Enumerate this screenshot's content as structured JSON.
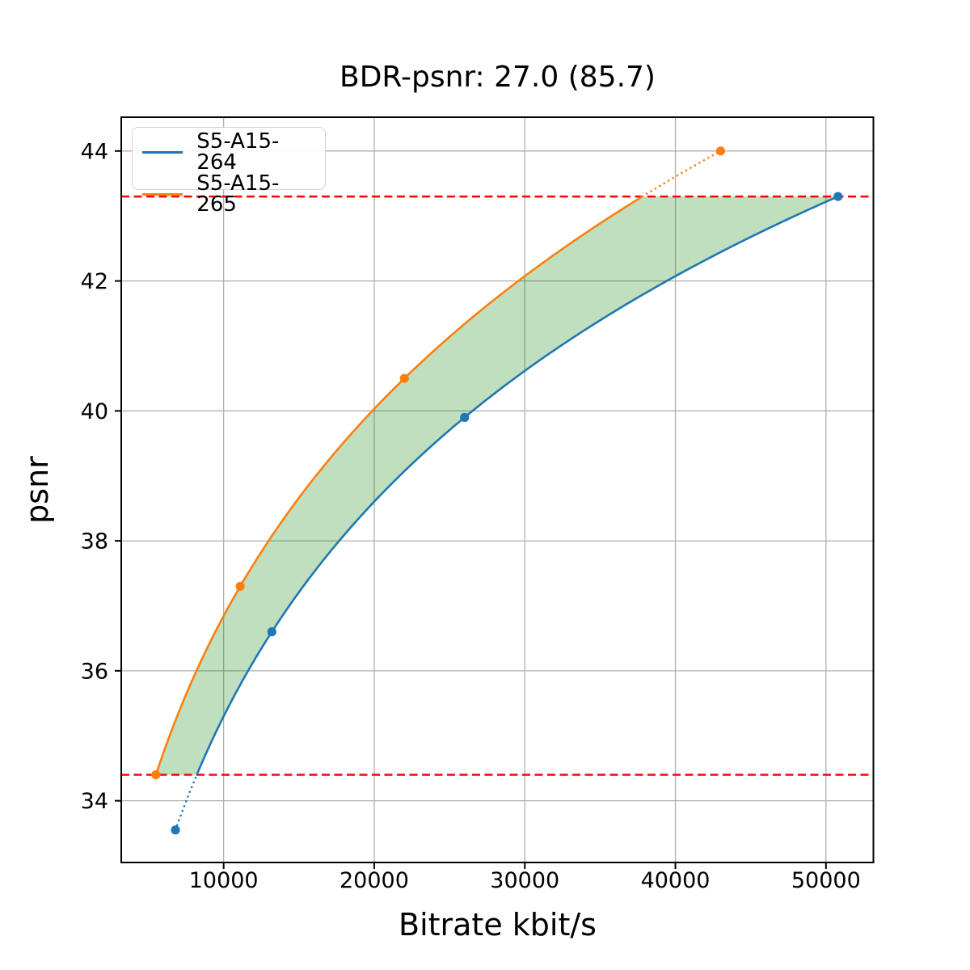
{
  "chart_data": {
    "type": "line",
    "title": "BDR-psnr: 27.0 (85.7)",
    "xlabel": "Bitrate kbit/s",
    "ylabel": "psnr",
    "xlim": [
      3200,
      53150
    ],
    "ylim": [
      33.05,
      44.52
    ],
    "xticks": [
      10000,
      20000,
      30000,
      40000,
      50000
    ],
    "yticks": [
      34,
      36,
      38,
      40,
      42,
      44
    ],
    "grid": true,
    "grid_color": "#b0b0b0",
    "legend_position": "upper left",
    "series": [
      {
        "name": "S5-A15-264",
        "color": "#1f77b4",
        "marker": "circle",
        "interpolation": "cubic-in-log-bitrate",
        "x": [
          6800,
          13200,
          26000,
          50800
        ],
        "y": [
          33.55,
          36.6,
          39.9,
          43.3
        ]
      },
      {
        "name": "S5-A15-265",
        "color": "#ff7f0e",
        "marker": "circle",
        "interpolation": "cubic-in-log-bitrate",
        "x": [
          5500,
          11100,
          22000,
          43000
        ],
        "y": [
          34.4,
          37.3,
          40.5,
          44.0
        ]
      }
    ],
    "overlap_region": {
      "y_min": 34.4,
      "y_max": 43.3,
      "fill_color": "#008000",
      "fill_opacity": 0.25
    },
    "hlines": [
      {
        "y": 34.4,
        "color": "#ff0000",
        "style": "dashed"
      },
      {
        "y": 43.3,
        "color": "#ff0000",
        "style": "dashed"
      }
    ],
    "bdr_value": "27.0",
    "bdr_secondary_value": "85.7"
  }
}
